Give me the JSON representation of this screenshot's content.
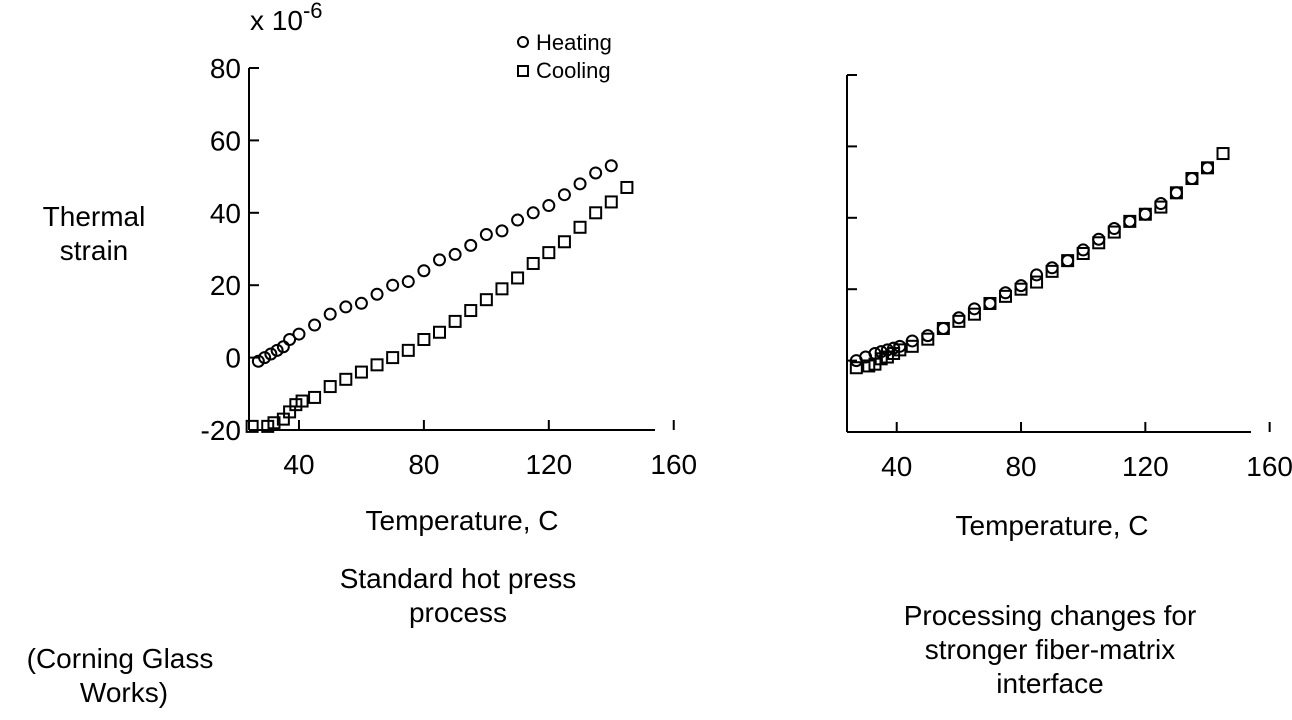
{
  "chart_data": [
    {
      "type": "scatter",
      "multiplier_label": "x 10",
      "multiplier_exponent": "-6",
      "ylabel_line1": "Thermal",
      "ylabel_line2": "strain",
      "xlabel": "Temperature, C",
      "caption_lines": [
        "Standard hot press",
        "process"
      ],
      "xlim": [
        24,
        154
      ],
      "ylim": [
        -20,
        80
      ],
      "x_ticks": [
        40,
        80,
        120,
        160
      ],
      "y_ticks": [
        -20,
        0,
        20,
        40,
        60,
        80
      ],
      "legend": {
        "position": "top-right",
        "entries": [
          "Heating",
          "Cooling"
        ]
      },
      "series": [
        {
          "name": "Heating",
          "marker": "circle",
          "x": [
            27,
            29,
            31,
            33,
            35,
            37,
            40,
            45,
            50,
            55,
            60,
            65,
            70,
            75,
            80,
            85,
            90,
            95,
            100,
            105,
            110,
            115,
            120,
            125,
            130,
            135,
            140
          ],
          "y": [
            -1,
            0,
            1,
            2,
            3,
            5,
            6.5,
            9,
            12,
            14,
            15,
            17.5,
            20,
            21,
            24,
            27,
            28.5,
            31,
            34,
            35,
            38,
            40,
            42,
            45,
            48,
            51,
            53
          ]
        },
        {
          "name": "Cooling",
          "marker": "square",
          "x": [
            25,
            30,
            32,
            35,
            37,
            39,
            41,
            45,
            50,
            55,
            60,
            65,
            70,
            75,
            80,
            85,
            90,
            95,
            100,
            105,
            110,
            115,
            120,
            125,
            130,
            135,
            140,
            145
          ],
          "y": [
            -19,
            -19,
            -18,
            -17,
            -15,
            -13,
            -12,
            -11,
            -8,
            -6,
            -4,
            -2,
            0,
            2,
            5,
            7,
            10,
            13,
            16,
            19,
            22,
            26,
            29,
            32,
            36,
            40,
            43,
            47
          ]
        }
      ]
    },
    {
      "type": "scatter",
      "xlabel": "Temperature, C",
      "caption_lines": [
        "Processing changes for",
        "stronger fiber-matrix",
        "interface"
      ],
      "xlim": [
        24,
        154
      ],
      "ylim": [
        -20,
        80
      ],
      "x_ticks": [
        40,
        80,
        120,
        160
      ],
      "y_ticks": [
        -20,
        0,
        20,
        40,
        60,
        80
      ],
      "series": [
        {
          "name": "Heating",
          "marker": "circle",
          "x": [
            27,
            30,
            33,
            35,
            37,
            39,
            41,
            45,
            50,
            55,
            60,
            65,
            70,
            75,
            80,
            85,
            90,
            95,
            100,
            105,
            110,
            115,
            120,
            125,
            130,
            135,
            140
          ],
          "y": [
            0,
            1,
            2,
            2.5,
            3,
            3.5,
            4,
            5.5,
            7,
            9,
            12,
            14.5,
            16,
            19,
            21,
            24,
            26,
            28,
            31,
            34,
            37,
            39,
            41,
            44,
            47,
            51,
            54
          ]
        },
        {
          "name": "Cooling",
          "marker": "square",
          "x": [
            27,
            31,
            33,
            35,
            37,
            39,
            41,
            45,
            50,
            55,
            60,
            65,
            70,
            75,
            80,
            85,
            90,
            95,
            100,
            105,
            110,
            115,
            120,
            125,
            130,
            135,
            140,
            145
          ],
          "y": [
            -2,
            -1.5,
            -1,
            0.5,
            1,
            2,
            3,
            4,
            6,
            9,
            11,
            13,
            16,
            18,
            20,
            22,
            25,
            28,
            30,
            33,
            36,
            39,
            41,
            43,
            47,
            51,
            54,
            58
          ]
        }
      ]
    }
  ],
  "footer": {
    "source_line1": "(Corning Glass",
    "source_line2": "Works)"
  }
}
